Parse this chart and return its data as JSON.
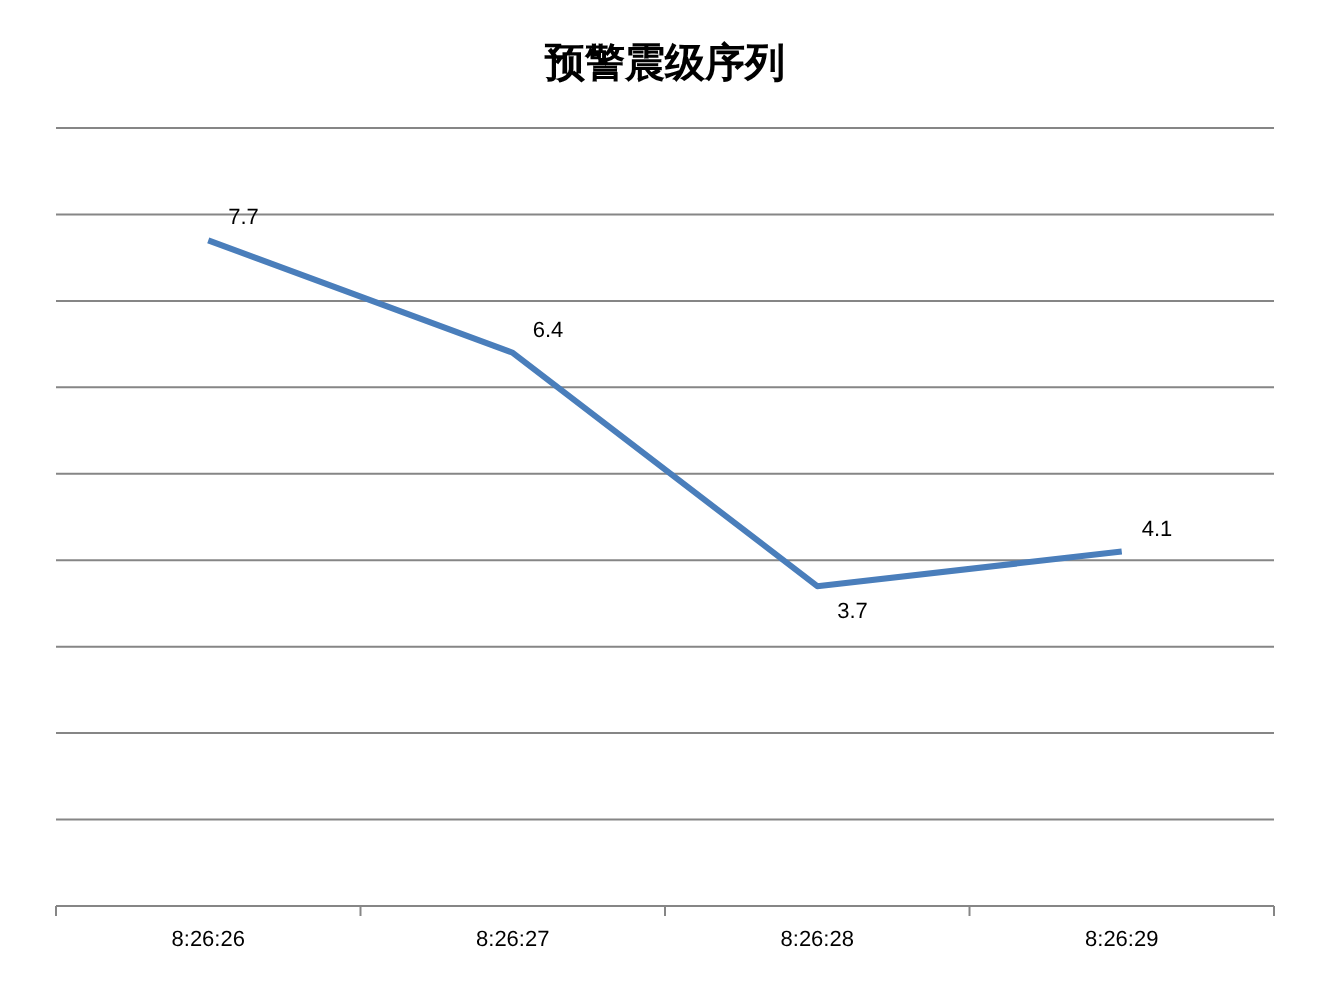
{
  "chart_data": {
    "type": "line",
    "title": "预警震级序列",
    "categories": [
      "8:26:26",
      "8:26:27",
      "8:26:28",
      "8:26:29"
    ],
    "series": [
      {
        "color": "#4a7ebb",
        "values": [
          7.7,
          6.4,
          3.7,
          4.1
        ]
      }
    ],
    "ylim": [
      0,
      9
    ],
    "yticks": [
      0,
      1,
      2,
      3,
      4,
      5,
      6,
      7,
      8,
      9
    ],
    "tick_labels": "x",
    "grid": "y",
    "data_labels": true,
    "marker": "none",
    "line_style": "solid"
  }
}
